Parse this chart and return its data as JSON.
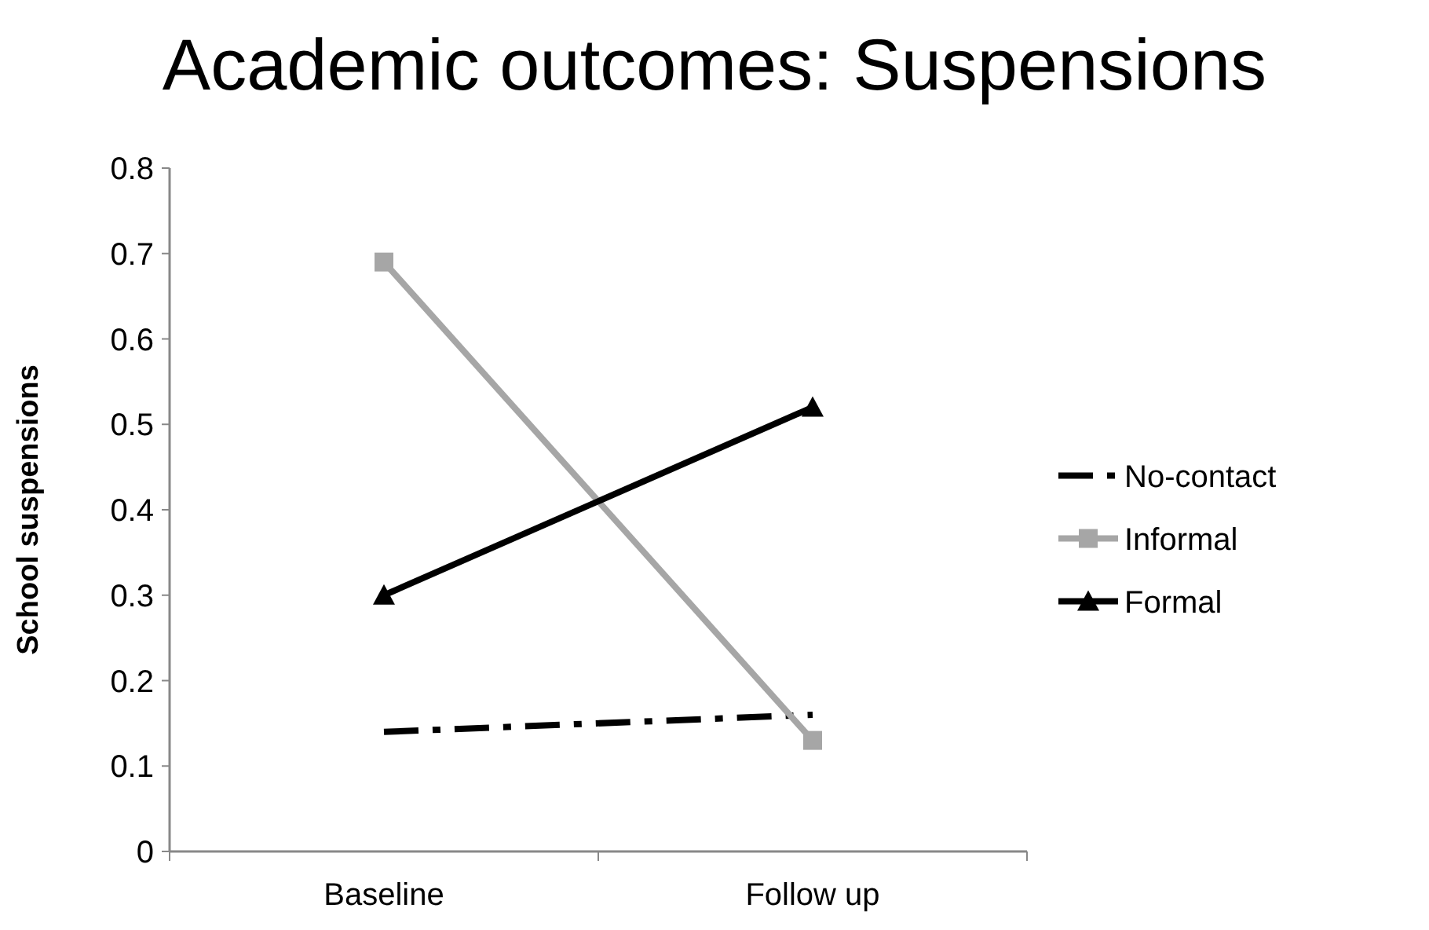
{
  "chart_data": {
    "type": "line",
    "title": "Academic outcomes: Suspensions",
    "ylabel": "School suspensions",
    "categories": [
      "Baseline",
      "Follow up"
    ],
    "ylim": [
      0,
      0.8
    ],
    "yticks": [
      0,
      0.1,
      0.2,
      0.3,
      0.4,
      0.5,
      0.6,
      0.7,
      0.8
    ],
    "grid": false,
    "legend": "right",
    "series": [
      {
        "name": "No-contact",
        "color": "#000000",
        "values": [
          0.14,
          0.16
        ],
        "marker": "none",
        "line_style": "dashed"
      },
      {
        "name": "Informal",
        "color": "#a6a6a6",
        "values": [
          0.69,
          0.13
        ],
        "marker": "square",
        "line_style": "solid"
      },
      {
        "name": "Formal",
        "color": "#000000",
        "values": [
          0.3,
          0.52
        ],
        "marker": "triangle",
        "line_style": "solid"
      }
    ]
  }
}
